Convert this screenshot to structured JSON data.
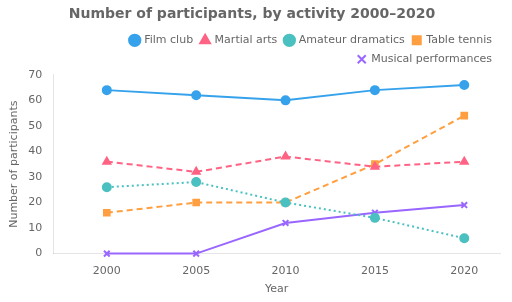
{
  "chart_data": {
    "type": "line",
    "title": "Number of participants, by activity 2000–2020",
    "xlabel": "Year",
    "ylabel": "Number of participants",
    "x": [
      2000,
      2005,
      2010,
      2015,
      2020
    ],
    "series": [
      {
        "name": "Film club",
        "values": [
          64,
          62,
          60,
          64,
          66
        ],
        "marker": "circle",
        "line_style": "solid"
      },
      {
        "name": "Martial arts",
        "values": [
          36,
          32,
          38,
          34,
          36
        ],
        "marker": "triangle",
        "line_style": "dashed"
      },
      {
        "name": "Amateur dramatics",
        "values": [
          26,
          28,
          20,
          14,
          6
        ],
        "marker": "circle",
        "line_style": "dotted"
      },
      {
        "name": "Table tennis",
        "values": [
          16,
          20,
          20,
          35,
          54
        ],
        "marker": "square",
        "line_style": "dashed"
      },
      {
        "name": "Musical performances",
        "values": [
          0,
          0,
          12,
          16,
          19
        ],
        "marker": "cross",
        "line_style": "solid"
      }
    ],
    "xlim": [
      1997,
      2022
    ],
    "xticks": [
      2000,
      2005,
      2010,
      2015,
      2020
    ],
    "ylim": [
      0,
      70
    ],
    "yticks": [
      0,
      10,
      20,
      30,
      40,
      50,
      60,
      70
    ],
    "grid": false,
    "legend": "upper right"
  }
}
